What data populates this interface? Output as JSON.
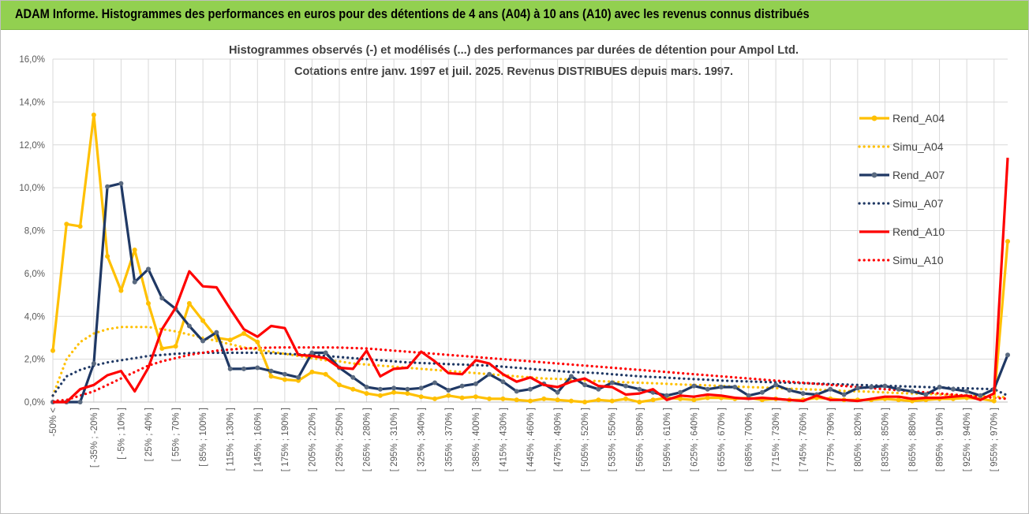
{
  "banner": {
    "title": "ADAM Informe. Histogrammes des performances en euros pour des détentions de 4 ans (A04) à 10 ans (A10) avec les revenus connus distribués"
  },
  "colors": {
    "banner_bg": "#92d050",
    "A04": "#ffc000",
    "A07": "#1f3864",
    "A10": "#ff0000",
    "grid": "#d9d9d9",
    "axis_text": "#595959"
  },
  "chart_data": {
    "type": "line",
    "title_line1": "Histogrammes observés (-) et modélisés (...) des performances par durées de détention pour Ampol Ltd.",
    "title_line2": "Cotations entre janv. 1997 et juil. 2025. Revenus DISTRIBUES depuis mars. 1997.",
    "ylim": [
      0,
      16
    ],
    "yticks": [
      0,
      2,
      4,
      6,
      8,
      10,
      12,
      14,
      16
    ],
    "ytick_labels": [
      "0,0%",
      "2,0%",
      "4,0%",
      "6,0%",
      "8,0%",
      "10,0%",
      "12,0%",
      "14,0%",
      "16,0%"
    ],
    "y_unit": "%",
    "n_categories": 71,
    "category_labels": [
      {
        "i": 0,
        "label": "-50% <"
      },
      {
        "i": 3,
        "label": "[ -35% ; -20% ]"
      },
      {
        "i": 5,
        "label": "[ -5% ; 10% ]"
      },
      {
        "i": 7,
        "label": "[ 25% ; 40% ]"
      },
      {
        "i": 9,
        "label": "[ 55% ; 70% ]"
      },
      {
        "i": 11,
        "label": "[ 85% ; 100% ]"
      },
      {
        "i": 13,
        "label": "[ 115% ; 130% ]"
      },
      {
        "i": 15,
        "label": "[ 145% ; 160% ]"
      },
      {
        "i": 17,
        "label": "[ 175% ; 190% ]"
      },
      {
        "i": 19,
        "label": "[ 205% ; 220% ]"
      },
      {
        "i": 21,
        "label": "[ 235% ; 250% ]"
      },
      {
        "i": 23,
        "label": "[ 265% ; 280% ]"
      },
      {
        "i": 25,
        "label": "[ 295% ; 310% ]"
      },
      {
        "i": 27,
        "label": "[ 325% ; 340% ]"
      },
      {
        "i": 29,
        "label": "[ 355% ; 370% ]"
      },
      {
        "i": 31,
        "label": "[ 385% ; 400% ]"
      },
      {
        "i": 33,
        "label": "[ 415% ; 430% ]"
      },
      {
        "i": 35,
        "label": "[ 445% ; 460% ]"
      },
      {
        "i": 37,
        "label": "[ 475% ; 490% ]"
      },
      {
        "i": 39,
        "label": "[ 505% ; 520% ]"
      },
      {
        "i": 41,
        "label": "[ 535% ; 550% ]"
      },
      {
        "i": 43,
        "label": "[ 565% ; 580% ]"
      },
      {
        "i": 45,
        "label": "[ 595% ; 610% ]"
      },
      {
        "i": 47,
        "label": "[ 625% ; 640% ]"
      },
      {
        "i": 49,
        "label": "[ 655% ; 670% ]"
      },
      {
        "i": 51,
        "label": "[ 685% ; 700% ]"
      },
      {
        "i": 53,
        "label": "[ 715% ; 730% ]"
      },
      {
        "i": 55,
        "label": "[ 745% ; 760% ]"
      },
      {
        "i": 57,
        "label": "[ 775% ; 790% ]"
      },
      {
        "i": 59,
        "label": "[ 805% ; 820% ]"
      },
      {
        "i": 61,
        "label": "[ 835% ; 850% ]"
      },
      {
        "i": 63,
        "label": "[ 865% ; 880% ]"
      },
      {
        "i": 65,
        "label": "[ 895% ; 910% ]"
      },
      {
        "i": 67,
        "label": "[ 925% ; 940% ]"
      },
      {
        "i": 69,
        "label": "[ 955% ; 970% ]"
      }
    ],
    "legend_position": "right",
    "series": [
      {
        "name": "Rend_A04",
        "style": "solid",
        "color": "#ffc000",
        "values": [
          2.4,
          8.3,
          8.2,
          13.4,
          6.8,
          5.2,
          7.1,
          4.6,
          2.5,
          2.6,
          4.6,
          3.8,
          3.0,
          2.9,
          3.2,
          2.8,
          1.2,
          1.05,
          1.0,
          1.4,
          1.3,
          0.8,
          0.6,
          0.4,
          0.3,
          0.45,
          0.4,
          0.25,
          0.15,
          0.3,
          0.2,
          0.25,
          0.15,
          0.15,
          0.1,
          0.05,
          0.15,
          0.1,
          0.05,
          0.0,
          0.1,
          0.05,
          0.15,
          0.0,
          0.1,
          0.2,
          0.15,
          0.1,
          0.2,
          0.2,
          0.15,
          0.2,
          0.1,
          0.15,
          0.1,
          0.1,
          0.2,
          0.15,
          0.1,
          0.1,
          0.1,
          0.15,
          0.1,
          0.05,
          0.1,
          0.15,
          0.15,
          0.2,
          0.15,
          0.05,
          7.5
        ]
      },
      {
        "name": "Simu_A04",
        "style": "dotted",
        "color": "#ffc000",
        "values": [
          0.3,
          2.0,
          2.8,
          3.2,
          3.4,
          3.5,
          3.5,
          3.5,
          3.4,
          3.3,
          3.15,
          3.0,
          2.85,
          2.7,
          2.55,
          2.45,
          2.35,
          2.25,
          2.15,
          2.05,
          1.95,
          1.9,
          1.8,
          1.75,
          1.7,
          1.65,
          1.6,
          1.55,
          1.5,
          1.45,
          1.4,
          1.35,
          1.3,
          1.25,
          1.2,
          1.15,
          1.1,
          1.08,
          1.05,
          1.0,
          0.98,
          0.95,
          0.92,
          0.9,
          0.88,
          0.85,
          0.82,
          0.8,
          0.78,
          0.75,
          0.72,
          0.7,
          0.68,
          0.65,
          0.62,
          0.6,
          0.58,
          0.55,
          0.52,
          0.5,
          0.48,
          0.45,
          0.42,
          0.4,
          0.38,
          0.35,
          0.32,
          0.3,
          0.28,
          0.25,
          0.22
        ]
      },
      {
        "name": "Rend_A07",
        "style": "solid",
        "color": "#1f3864",
        "values": [
          0.0,
          0.0,
          0.0,
          1.8,
          10.05,
          10.2,
          5.6,
          6.2,
          4.85,
          4.35,
          3.55,
          2.85,
          3.25,
          1.55,
          1.55,
          1.6,
          1.45,
          1.3,
          1.15,
          2.3,
          2.3,
          1.6,
          1.15,
          0.7,
          0.6,
          0.65,
          0.6,
          0.65,
          0.9,
          0.55,
          0.75,
          0.85,
          1.3,
          0.95,
          0.5,
          0.6,
          0.85,
          0.45,
          1.2,
          0.8,
          0.6,
          0.9,
          0.75,
          0.6,
          0.45,
          0.3,
          0.45,
          0.75,
          0.6,
          0.7,
          0.7,
          0.3,
          0.45,
          0.8,
          0.55,
          0.4,
          0.35,
          0.6,
          0.35,
          0.65,
          0.7,
          0.75,
          0.6,
          0.5,
          0.35,
          0.7,
          0.6,
          0.5,
          0.3,
          0.6,
          2.2
        ]
      },
      {
        "name": "Simu_A07",
        "style": "dotted",
        "color": "#1f3864",
        "values": [
          0.3,
          1.2,
          1.5,
          1.7,
          1.85,
          1.95,
          2.05,
          2.15,
          2.2,
          2.25,
          2.28,
          2.3,
          2.3,
          2.3,
          2.3,
          2.3,
          2.28,
          2.25,
          2.22,
          2.2,
          2.15,
          2.1,
          2.05,
          2.0,
          1.95,
          1.9,
          1.85,
          1.82,
          1.8,
          1.77,
          1.75,
          1.72,
          1.7,
          1.65,
          1.6,
          1.55,
          1.5,
          1.45,
          1.4,
          1.38,
          1.35,
          1.3,
          1.25,
          1.2,
          1.17,
          1.14,
          1.1,
          1.07,
          1.04,
          1.0,
          0.98,
          0.96,
          0.94,
          0.92,
          0.9,
          0.88,
          0.86,
          0.84,
          0.82,
          0.8,
          0.78,
          0.76,
          0.74,
          0.72,
          0.7,
          0.68,
          0.66,
          0.64,
          0.62,
          0.6,
          0.3
        ]
      },
      {
        "name": "Rend_A10",
        "style": "solid",
        "color": "#ff0000",
        "values": [
          0.0,
          0.0,
          0.6,
          0.8,
          1.25,
          1.45,
          0.5,
          1.6,
          3.4,
          4.4,
          6.1,
          5.4,
          5.35,
          4.35,
          3.4,
          3.05,
          3.55,
          3.45,
          2.2,
          2.15,
          2.05,
          1.6,
          1.55,
          2.4,
          1.2,
          1.55,
          1.6,
          2.35,
          1.9,
          1.35,
          1.3,
          1.95,
          1.8,
          1.3,
          0.95,
          1.15,
          0.8,
          0.7,
          0.95,
          1.1,
          0.75,
          0.7,
          0.35,
          0.4,
          0.6,
          0.1,
          0.3,
          0.25,
          0.35,
          0.3,
          0.2,
          0.15,
          0.2,
          0.15,
          0.1,
          0.05,
          0.3,
          0.1,
          0.1,
          0.05,
          0.15,
          0.25,
          0.25,
          0.15,
          0.2,
          0.2,
          0.25,
          0.3,
          0.1,
          0.4,
          11.4
        ]
      },
      {
        "name": "Simu_A10",
        "style": "dotted",
        "color": "#ff0000",
        "values": [
          0.05,
          0.1,
          0.3,
          0.5,
          0.8,
          1.1,
          1.4,
          1.7,
          1.9,
          2.05,
          2.2,
          2.3,
          2.4,
          2.45,
          2.5,
          2.52,
          2.54,
          2.55,
          2.55,
          2.55,
          2.55,
          2.54,
          2.52,
          2.5,
          2.45,
          2.4,
          2.35,
          2.3,
          2.25,
          2.2,
          2.15,
          2.1,
          2.05,
          2.0,
          1.95,
          1.9,
          1.85,
          1.8,
          1.75,
          1.7,
          1.65,
          1.6,
          1.55,
          1.5,
          1.45,
          1.4,
          1.35,
          1.3,
          1.25,
          1.2,
          1.15,
          1.1,
          1.05,
          1.0,
          0.95,
          0.9,
          0.85,
          0.8,
          0.75,
          0.7,
          0.65,
          0.6,
          0.55,
          0.5,
          0.45,
          0.4,
          0.35,
          0.3,
          0.25,
          0.2,
          0.15
        ]
      }
    ]
  }
}
